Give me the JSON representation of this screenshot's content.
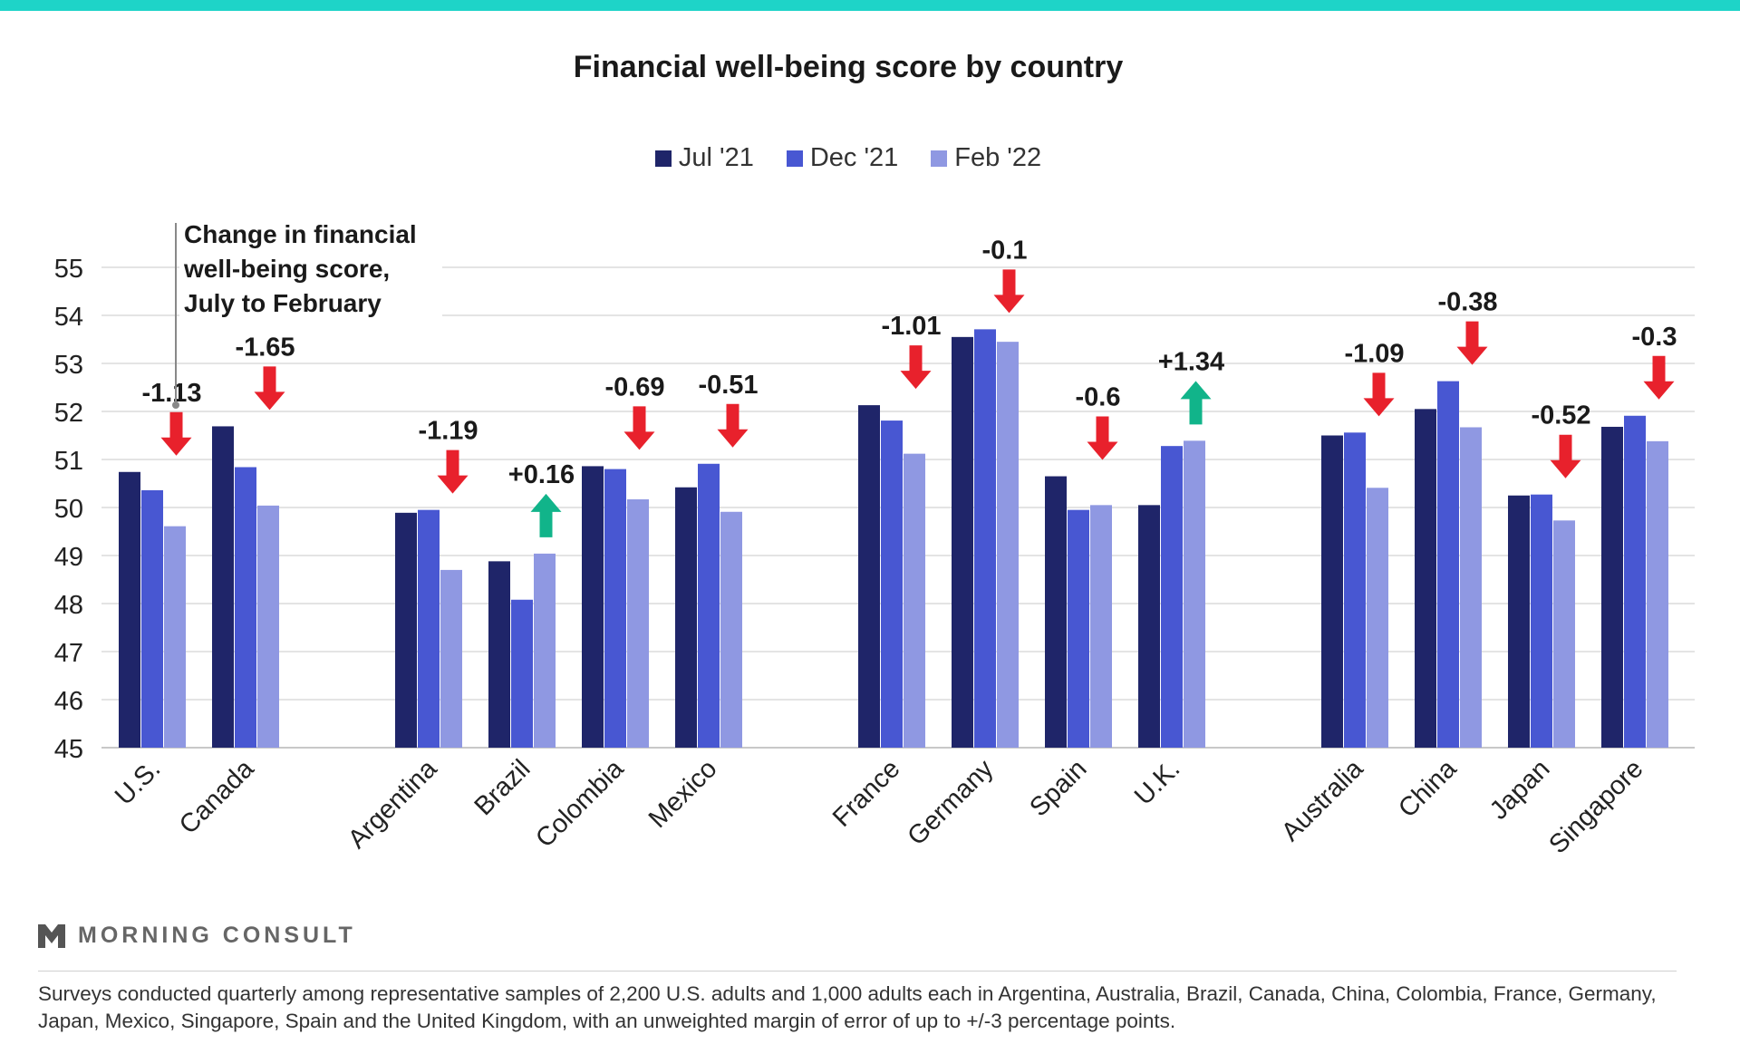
{
  "chart_data": {
    "type": "bar",
    "title": "Financial well-being score by country",
    "xlabel": "",
    "ylabel": "",
    "ylim": [
      45,
      55
    ],
    "yticks": [
      45,
      46,
      47,
      48,
      49,
      50,
      51,
      52,
      53,
      54,
      55
    ],
    "grid": true,
    "legend_position": "top-center",
    "categories": [
      "U.S.",
      "Canada",
      "Argentina",
      "Brazil",
      "Colombia",
      "Mexico",
      "France",
      "Germany",
      "Spain",
      "U.K.",
      "Australia",
      "China",
      "Japan",
      "Singapore"
    ],
    "series": [
      {
        "name": "Jul '21",
        "color": "#1f2569",
        "values": [
          50.74,
          51.69,
          49.89,
          48.88,
          50.86,
          50.42,
          52.13,
          53.55,
          50.65,
          50.05,
          51.5,
          52.05,
          50.25,
          51.68
        ]
      },
      {
        "name": "Dec '21",
        "color": "#4857d2",
        "values": [
          50.36,
          50.84,
          49.95,
          48.08,
          50.8,
          50.91,
          51.81,
          53.71,
          49.95,
          51.28,
          51.56,
          52.63,
          50.27,
          51.91
        ]
      },
      {
        "name": "Feb '22",
        "color": "#8f98e2",
        "values": [
          49.61,
          50.04,
          48.7,
          49.04,
          50.17,
          49.91,
          51.12,
          53.45,
          50.05,
          51.39,
          50.41,
          51.67,
          49.73,
          51.38
        ]
      }
    ],
    "changes": [
      "-1.13",
      "-1.65",
      "-1.19",
      "+0.16",
      "-0.69",
      "-0.51",
      "-1.01",
      "-0.1",
      "-0.6",
      "+1.34",
      "-1.09",
      "-0.38",
      "-0.52",
      "-0.3"
    ],
    "change_directions": [
      "down",
      "down",
      "down",
      "up",
      "down",
      "down",
      "down",
      "down",
      "down",
      "up",
      "down",
      "down",
      "down",
      "down"
    ],
    "annotation": [
      "Change in financial",
      "well-being score,",
      "July to February"
    ],
    "colors": {
      "down_arrow": "#e8212c",
      "up_arrow": "#11b48a",
      "grid": "#dcdcdc",
      "axis_text": "#1a1a1a"
    }
  },
  "brand": {
    "name": "MORNING CONSULT",
    "accent": "#1ed4c8"
  },
  "footnote": "Surveys conducted quarterly among representative samples of 2,200 U.S. adults and 1,000 adults each in Argentina, Australia, Brazil, Canada, China, Colombia, France, Germany, Japan, Mexico, Singapore, Spain and the United Kingdom, with an unweighted margin of error of up to +/-3 percentage points."
}
